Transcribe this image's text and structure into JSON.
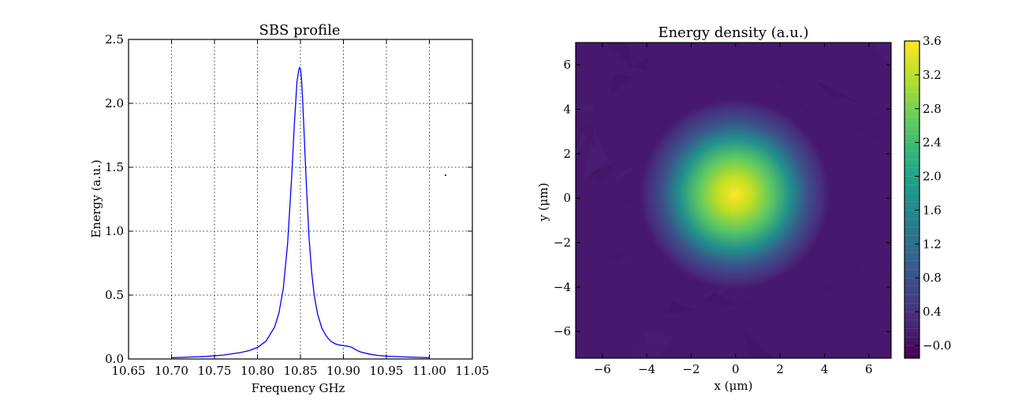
{
  "chart_data": [
    {
      "type": "line",
      "title": "SBS profile",
      "xlabel": "Frequency GHz",
      "ylabel": "Energy (a.u.)",
      "xlim": [
        10.65,
        11.05
      ],
      "ylim": [
        0.0,
        2.5
      ],
      "xticks": [
        "10.65",
        "10.70",
        "10.75",
        "10.80",
        "10.85",
        "10.90",
        "10.95",
        "11.00",
        "11.05"
      ],
      "yticks": [
        "0.0",
        "0.5",
        "1.0",
        "1.5",
        "2.0",
        "2.5"
      ],
      "grid": true,
      "series": [
        {
          "color": "#0000ff",
          "x": [
            10.7,
            10.72,
            10.74,
            10.76,
            10.78,
            10.79,
            10.8,
            10.81,
            10.82,
            10.825,
            10.83,
            10.835,
            10.84,
            10.843,
            10.846,
            10.848,
            10.849,
            10.85,
            10.851,
            10.852,
            10.854,
            10.857,
            10.86,
            10.863,
            10.866,
            10.87,
            10.875,
            10.88,
            10.885,
            10.89,
            10.895,
            10.9,
            10.905,
            10.91,
            10.915,
            10.92,
            10.93,
            10.94,
            10.95,
            10.97,
            11.0
          ],
          "y": [
            0.01,
            0.015,
            0.02,
            0.03,
            0.05,
            0.065,
            0.09,
            0.14,
            0.25,
            0.36,
            0.55,
            0.9,
            1.45,
            1.85,
            2.17,
            2.26,
            2.28,
            2.27,
            2.21,
            2.1,
            1.8,
            1.35,
            0.95,
            0.68,
            0.5,
            0.35,
            0.24,
            0.18,
            0.14,
            0.12,
            0.11,
            0.105,
            0.1,
            0.09,
            0.07,
            0.055,
            0.038,
            0.028,
            0.022,
            0.016,
            0.01
          ]
        }
      ]
    },
    {
      "type": "heatmap",
      "title": "Energy density (a.u.)",
      "xlabel": "x (μm)",
      "ylabel": "y (μm)",
      "xlim": [
        -7.2,
        7.0
      ],
      "ylim": [
        -7.2,
        7.0
      ],
      "xticks": [
        "−6",
        "−4",
        "−2",
        "0",
        "2",
        "4",
        "6"
      ],
      "yticks": [
        "−6",
        "−4",
        "−2",
        "0",
        "2",
        "4",
        "6"
      ],
      "colormap": "viridis",
      "peak": 3.6,
      "center": [
        0.0,
        0.0
      ],
      "colorbar": {
        "min": -0.15,
        "max": 3.6,
        "ticks": [
          "−0.0",
          "0.4",
          "0.8",
          "1.2",
          "1.6",
          "2.0",
          "2.4",
          "2.8",
          "3.2",
          "3.6"
        ]
      }
    }
  ]
}
